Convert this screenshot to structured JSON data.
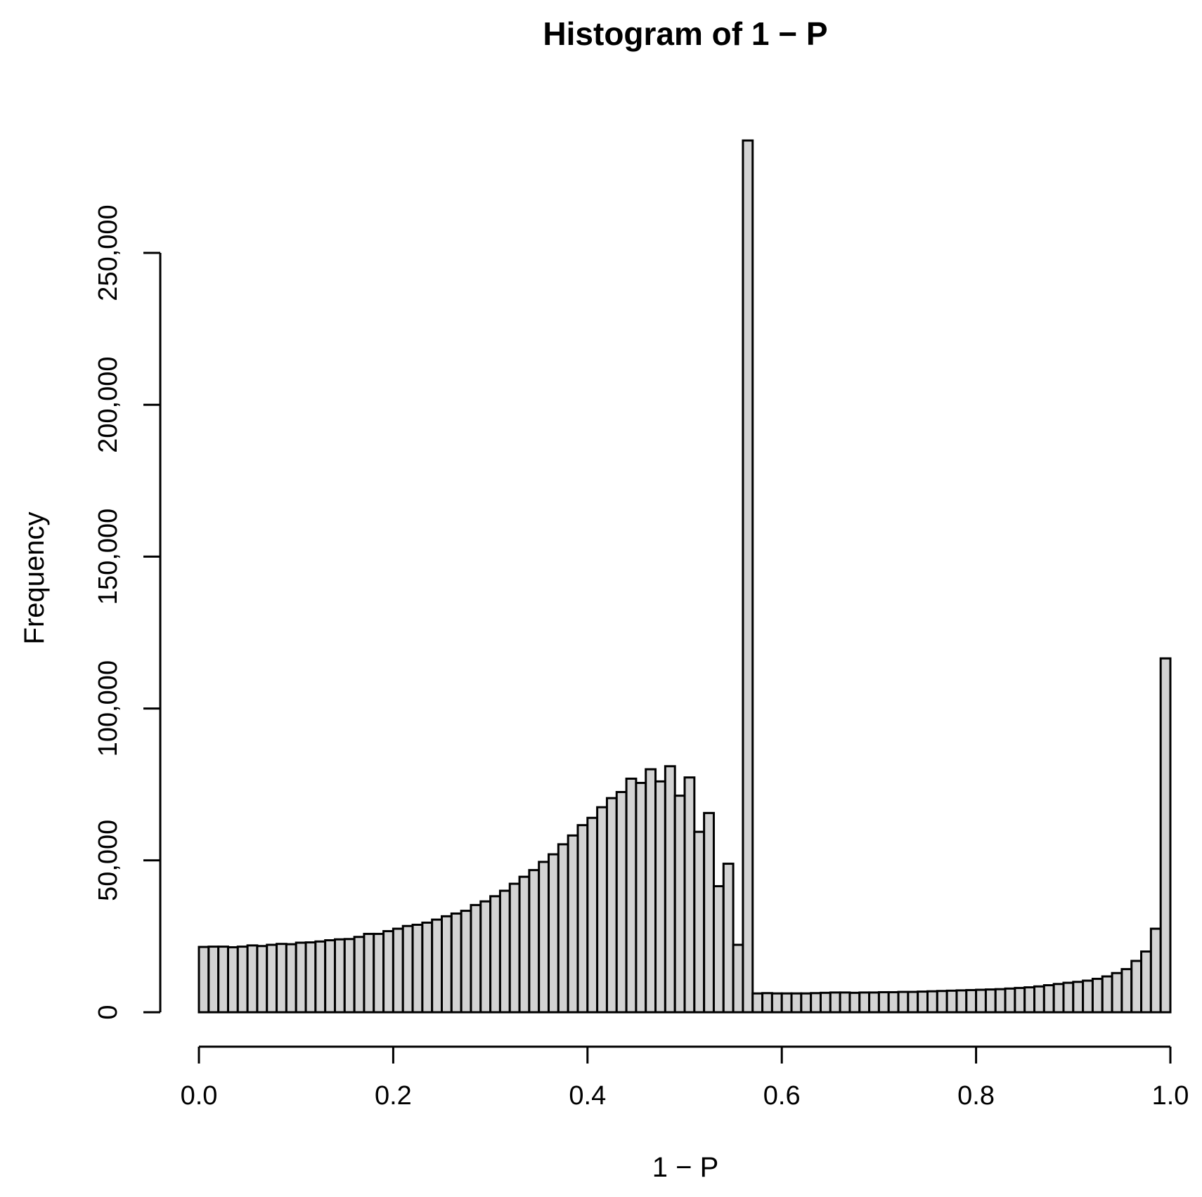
{
  "chart_data": {
    "type": "bar",
    "title": "Histogram of 1 − P",
    "xlabel": "1 − P",
    "ylabel": "Frequency",
    "bar_color": "#d3d3d3",
    "edge_color": "#000000",
    "x_range": [
      0.0,
      1.0
    ],
    "bin_width": 0.01,
    "xlim": [
      0.0,
      1.0
    ],
    "ylim": [
      0,
      287000
    ],
    "x_ticks": [
      0.0,
      0.2,
      0.4,
      0.6,
      0.8,
      1.0
    ],
    "x_tick_labels": [
      "0.0",
      "0.2",
      "0.4",
      "0.6",
      "0.8",
      "1.0"
    ],
    "y_ticks": [
      0,
      50000,
      100000,
      150000,
      200000,
      250000
    ],
    "y_tick_labels": [
      "0",
      "50,000",
      "100,000",
      "150,000",
      "200,000",
      "250,000"
    ],
    "values": [
      21500,
      21600,
      21600,
      21400,
      21600,
      22000,
      21800,
      22200,
      22500,
      22400,
      22900,
      23000,
      23300,
      23700,
      24000,
      24100,
      24800,
      25800,
      25800,
      26700,
      27500,
      28400,
      28800,
      29500,
      30500,
      31600,
      32500,
      33400,
      35300,
      36500,
      38200,
      40000,
      42300,
      44600,
      46800,
      49500,
      52000,
      55300,
      58200,
      61600,
      64000,
      67500,
      70500,
      72500,
      76900,
      75500,
      80000,
      76000,
      81000,
      71300,
      77300,
      59400,
      65600,
      41500,
      48900,
      22200,
      287000,
      6200,
      6300,
      6200,
      6200,
      6200,
      6200,
      6300,
      6400,
      6500,
      6500,
      6400,
      6500,
      6500,
      6600,
      6600,
      6700,
      6700,
      6800,
      6900,
      7000,
      7100,
      7200,
      7300,
      7400,
      7500,
      7600,
      7800,
      8000,
      8200,
      8500,
      8900,
      9300,
      9700,
      10000,
      10400,
      11000,
      11800,
      12900,
      14200,
      16900,
      20000,
      27500,
      116500
    ]
  }
}
